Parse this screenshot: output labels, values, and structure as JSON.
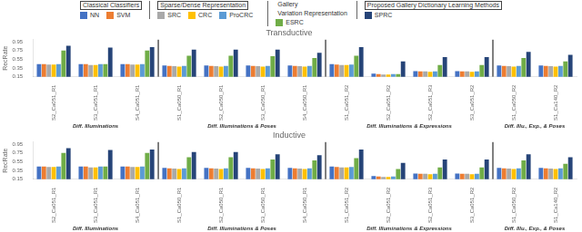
{
  "chart_data": [
    {
      "type": "bar",
      "title": "Transductive",
      "ylabel": "RecRate",
      "ylim": [
        0.15,
        1.0
      ],
      "yticks": [
        0.15,
        0.35,
        0.55,
        0.75,
        0.95
      ],
      "grid": false,
      "legend": "top",
      "legend_groups": [
        {
          "label": "Classical Classifiers",
          "series": [
            "NN",
            "SVM"
          ]
        },
        {
          "label": "Sparse/Dense Representation",
          "series": [
            "SRC",
            "CRC",
            "ProCRC"
          ]
        },
        {
          "label": "Gallery",
          "sublabel": "Variation Representation",
          "series": [
            "ESRC"
          ]
        },
        {
          "label": "Proposed Gallery Dictionary Learning Methods",
          "series": [
            "SPRC"
          ]
        }
      ],
      "sections": [
        {
          "label": "Diff. Illuminations",
          "categories": [
            "S2_Ca051_R1",
            "S3_Ca051_R1",
            "S4_Ca051_R1"
          ]
        },
        {
          "label": "Diff. Illuminations & Poses",
          "categories": [
            "S1_Ca050_R1",
            "S2_Ca050_R1",
            "S3_Ca050_R1",
            "S4_Ca050_R1"
          ]
        },
        {
          "label": "Diff. Illuminations & Expressions",
          "categories": [
            "S1_Ca051_R2",
            "S2_Ca051_R2",
            "S2_Ca051_R3",
            "S3_Ca051_R2"
          ]
        },
        {
          "label": "Diff. Illu., Exp., & Poses",
          "categories": [
            "S1_Ca050_R2",
            "S1_Ca140_R2"
          ]
        }
      ],
      "series": [
        {
          "name": "NN",
          "color": "#4472C4",
          "values": [
            0.44,
            0.44,
            0.44,
            0.41,
            0.41,
            0.41,
            0.41,
            0.44,
            0.22,
            0.28,
            0.28,
            0.41,
            0.41
          ]
        },
        {
          "name": "SVM",
          "color": "#ED7D31",
          "values": [
            0.44,
            0.44,
            0.44,
            0.4,
            0.4,
            0.4,
            0.4,
            0.43,
            0.21,
            0.27,
            0.27,
            0.4,
            0.4
          ]
        },
        {
          "name": "SRC",
          "color": "#A9A9A9",
          "values": [
            0.43,
            0.42,
            0.43,
            0.39,
            0.39,
            0.39,
            0.39,
            0.42,
            0.2,
            0.27,
            0.27,
            0.39,
            0.39
          ]
        },
        {
          "name": "CRC",
          "color": "#FFC000",
          "values": [
            0.43,
            0.42,
            0.43,
            0.38,
            0.38,
            0.38,
            0.38,
            0.42,
            0.2,
            0.26,
            0.26,
            0.38,
            0.38
          ]
        },
        {
          "name": "ProCRC",
          "color": "#5B9BD5",
          "values": [
            0.44,
            0.44,
            0.44,
            0.4,
            0.4,
            0.4,
            0.4,
            0.43,
            0.21,
            0.27,
            0.27,
            0.4,
            0.4
          ]
        },
        {
          "name": "ESRC",
          "color": "#70AD47",
          "values": [
            0.75,
            0.44,
            0.75,
            0.63,
            0.63,
            0.62,
            0.58,
            0.63,
            0.21,
            0.42,
            0.42,
            0.58,
            0.5
          ]
        },
        {
          "name": "SPRC",
          "color": "#264478",
          "values": [
            0.86,
            0.82,
            0.83,
            0.77,
            0.77,
            0.77,
            0.7,
            0.83,
            0.5,
            0.6,
            0.6,
            0.72,
            0.65
          ]
        }
      ]
    },
    {
      "type": "bar",
      "title": "Inductive",
      "ylabel": "RecRate",
      "ylim": [
        0.15,
        1.0
      ],
      "yticks": [
        0.15,
        0.35,
        0.55,
        0.75,
        0.95
      ],
      "grid": false,
      "sections": [
        {
          "label": "Diff. Illuminations",
          "categories": [
            "S2_Ca051_R1",
            "S3_Ca051_R1",
            "S4_Ca051_R1"
          ]
        },
        {
          "label": "Diff. Illuminations & Poses",
          "categories": [
            "S1_Ca050_R1",
            "S2_Ca050_R1",
            "S3_Ca050_R1",
            "S4_Ca050_R1"
          ]
        },
        {
          "label": "Diff. Illuminations & Expressions",
          "categories": [
            "S1_Ca051_R2",
            "S2_Ca051_R2",
            "S2_Ca051_R3",
            "S3_Ca051_R2"
          ]
        },
        {
          "label": "Diff. Illu., Exp., & Poses",
          "categories": [
            "S1_Ca050_R2",
            "S1_Ca140_R2"
          ]
        }
      ],
      "series": [
        {
          "name": "NN",
          "color": "#4472C4",
          "values": [
            0.44,
            0.44,
            0.44,
            0.41,
            0.41,
            0.41,
            0.41,
            0.44,
            0.22,
            0.28,
            0.28,
            0.41,
            0.41
          ]
        },
        {
          "name": "SVM",
          "color": "#ED7D31",
          "values": [
            0.44,
            0.44,
            0.44,
            0.4,
            0.4,
            0.4,
            0.4,
            0.43,
            0.21,
            0.27,
            0.27,
            0.4,
            0.4
          ]
        },
        {
          "name": "SRC",
          "color": "#A9A9A9",
          "values": [
            0.43,
            0.42,
            0.43,
            0.39,
            0.39,
            0.39,
            0.39,
            0.42,
            0.2,
            0.27,
            0.27,
            0.39,
            0.39
          ]
        },
        {
          "name": "CRC",
          "color": "#FFC000",
          "values": [
            0.43,
            0.42,
            0.43,
            0.38,
            0.38,
            0.38,
            0.38,
            0.42,
            0.2,
            0.26,
            0.26,
            0.38,
            0.38
          ]
        },
        {
          "name": "ProCRC",
          "color": "#5B9BD5",
          "values": [
            0.44,
            0.44,
            0.44,
            0.4,
            0.4,
            0.4,
            0.4,
            0.43,
            0.21,
            0.27,
            0.27,
            0.4,
            0.4
          ]
        },
        {
          "name": "ESRC",
          "color": "#70AD47",
          "values": [
            0.75,
            0.44,
            0.75,
            0.65,
            0.65,
            0.6,
            0.58,
            0.63,
            0.38,
            0.42,
            0.42,
            0.58,
            0.5
          ]
        },
        {
          "name": "SPRC",
          "color": "#264478",
          "values": [
            0.86,
            0.82,
            0.83,
            0.77,
            0.77,
            0.72,
            0.7,
            0.83,
            0.52,
            0.6,
            0.6,
            0.72,
            0.65
          ]
        }
      ]
    }
  ]
}
